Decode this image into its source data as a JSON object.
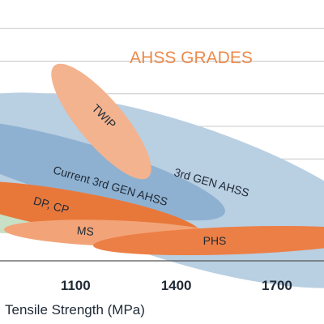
{
  "chart_data": {
    "type": "area",
    "title": "AHSS GRADES",
    "xlabel": "Tensile Strength (MPa)",
    "ylabel": "",
    "xlim": [
      875,
      1840
    ],
    "ylim": [
      0,
      80
    ],
    "x_ticks": [
      {
        "value": 1100,
        "label": "1100"
      },
      {
        "value": 1400,
        "label": "1400"
      },
      {
        "value": 1700,
        "label": "1700"
      }
    ],
    "y_grid": [
      10,
      20,
      30,
      40,
      50,
      60,
      70,
      80
    ],
    "grid": true,
    "regions": [
      {
        "name": "3rd GEN AHSS",
        "label": "3rd GEN AHSS",
        "color": "#b9cfe2",
        "x_range": [
          880,
          1840
        ],
        "y_range": [
          13,
          34
        ],
        "label_x": 1470,
        "label_y": 24
      },
      {
        "name": "Current 3rd GEN AHSS",
        "label": "Current 3rd GEN AHSS",
        "color": "#8fb1d1",
        "x_range": [
          880,
          1500
        ],
        "y_range": [
          14,
          30
        ],
        "label_x": 1060,
        "label_y": 22
      },
      {
        "name": "light green region",
        "label": "",
        "color": "#c8e0c5",
        "x_range": [
          880,
          980
        ],
        "y_range": [
          10,
          16
        ],
        "label_x": null,
        "label_y": null
      },
      {
        "name": "DP, CP",
        "label": "DP, CP",
        "color": "#e8783a",
        "x_range": [
          880,
          1370
        ],
        "y_range": [
          9,
          24
        ],
        "label_x": 1000,
        "label_y": 17
      },
      {
        "name": "MS",
        "label": "MS",
        "color": "#f2a478",
        "x_range": [
          940,
          1400
        ],
        "y_range": [
          5,
          13
        ],
        "label_x": 1130,
        "label_y": 9
      },
      {
        "name": "PHS",
        "label": "PHS",
        "color": "#ec7f45",
        "x_range": [
          1190,
          1840
        ],
        "y_range": [
          3,
          14
        ],
        "label_x": 1450,
        "label_y": 7
      },
      {
        "name": "TWIP",
        "label": "TWIP",
        "color": "#f3b38e",
        "x_range": [
          1030,
          1310
        ],
        "y_range": [
          20,
          68
        ],
        "label_x": 1175,
        "label_y": 48
      }
    ]
  }
}
